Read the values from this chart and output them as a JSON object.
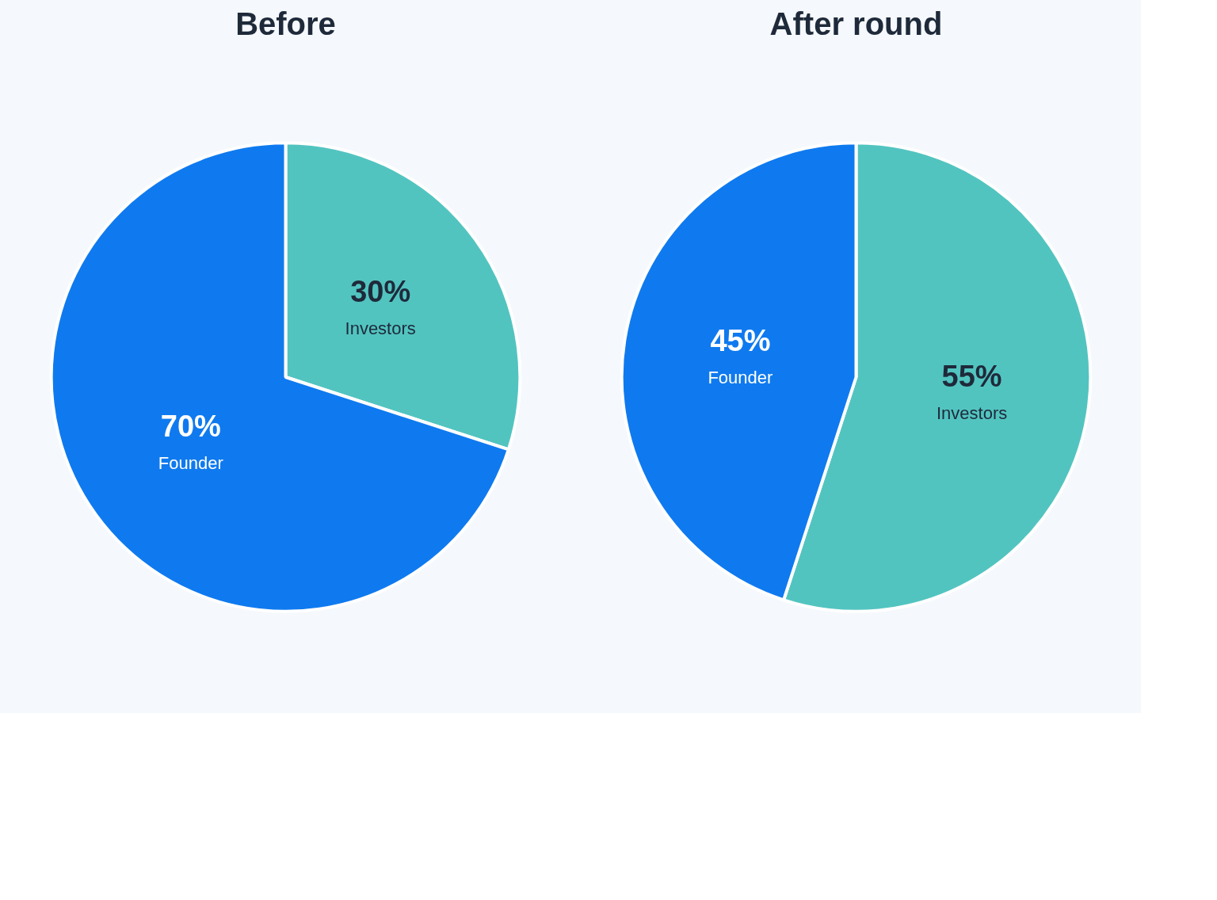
{
  "chart_data": [
    {
      "type": "pie",
      "title": "Before",
      "categories": [
        "Investors",
        "Founder"
      ],
      "values": [
        30,
        70
      ],
      "colors": [
        "#52c4c0",
        "#0f7aef"
      ],
      "value_labels": [
        "30%",
        "70%"
      ],
      "data_labels": true
    },
    {
      "type": "pie",
      "title": "After round",
      "categories": [
        "Investors",
        "Founder"
      ],
      "values": [
        55,
        45
      ],
      "colors": [
        "#52c4c0",
        "#0f7aef"
      ],
      "value_labels": [
        "55%",
        "45%"
      ],
      "data_labels": true
    }
  ]
}
